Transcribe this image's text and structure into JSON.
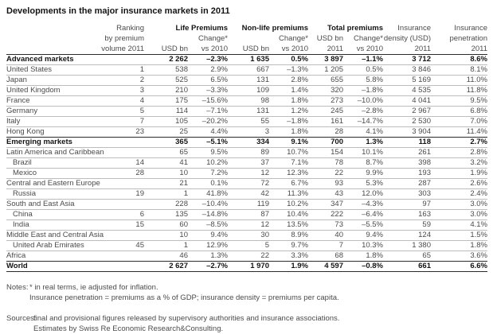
{
  "title": "Developments in the major insurance markets in 2011",
  "colors": {
    "background": "#ffffff",
    "text": "#4b4b4d",
    "bold_text": "#141414",
    "thick_rule": "#2b2b2b",
    "row_separator": "#bdbdbd"
  },
  "table": {
    "header": {
      "ranking": {
        "l1": "Ranking",
        "l2": "by premium",
        "l3": "volume 2011"
      },
      "life": {
        "group": "Life Premiums",
        "usd_l3": "USD bn",
        "chg_l2": "Change*",
        "chg_l3": "vs 2010"
      },
      "nonlife": {
        "group": "Non-life premiums",
        "usd_l3": "USD bn",
        "chg_l2": "Change*",
        "chg_l3": "vs 2010"
      },
      "total": {
        "group": "Total premiums",
        "usd_l2": "USD bn",
        "usd_l3": "2011",
        "chg_l2": "Change*",
        "chg_l3": "vs 2010"
      },
      "density": {
        "l1": "Insurance",
        "l2": "density (USD)",
        "l3": "2011"
      },
      "penetration": {
        "l1": "Insurance",
        "l2": "penetration",
        "l3": "2011"
      }
    },
    "rows": [
      {
        "label": "Advanced markets",
        "rank": "",
        "type": "aggregate",
        "values": [
          "2 262",
          "–2.3%",
          "1 635",
          "0.5%",
          "3 897",
          "–1.1%",
          "3 712",
          "8.6%"
        ]
      },
      {
        "label": "United States",
        "rank": "1",
        "type": "country",
        "values": [
          "538",
          "2.9%",
          "667",
          "–1.3%",
          "1 205",
          "0.5%",
          "3 846",
          "8.1%"
        ]
      },
      {
        "label": "Japan",
        "rank": "2",
        "type": "country",
        "values": [
          "525",
          "6.5%",
          "131",
          "2.8%",
          "655",
          "5.8%",
          "5 169",
          "11.0%"
        ]
      },
      {
        "label": "United Kingdom",
        "rank": "3",
        "type": "country",
        "values": [
          "210",
          "–3.3%",
          "109",
          "1.4%",
          "320",
          "–1.8%",
          "4 535",
          "11.8%"
        ]
      },
      {
        "label": "France",
        "rank": "4",
        "type": "country",
        "values": [
          "175",
          "–15.6%",
          "98",
          "1.8%",
          "273",
          "–10.0%",
          "4 041",
          "9.5%"
        ]
      },
      {
        "label": "Germany",
        "rank": "5",
        "type": "country",
        "values": [
          "114",
          "–7.1%",
          "131",
          "1.2%",
          "245",
          "–2.8%",
          "2 967",
          "6.8%"
        ]
      },
      {
        "label": "Italy",
        "rank": "7",
        "type": "country",
        "values": [
          "105",
          "–20.2%",
          "55",
          "–1.8%",
          "161",
          "–14.7%",
          "2 530",
          "7.0%"
        ]
      },
      {
        "label": "Hong Kong",
        "rank": "23",
        "type": "country",
        "values": [
          "25",
          "4.4%",
          "3",
          "1.8%",
          "28",
          "4.1%",
          "3 904",
          "11.4%"
        ]
      },
      {
        "label": "Emerging markets",
        "rank": "",
        "type": "aggregate",
        "values": [
          "365",
          "–5.1%",
          "334",
          "9.1%",
          "700",
          "1.3%",
          "118",
          "2.7%"
        ]
      },
      {
        "label": "Latin America and Caribbean",
        "rank": "",
        "type": "region",
        "values": [
          "65",
          "9.5%",
          "89",
          "10.7%",
          "154",
          "10.1%",
          "261",
          "2.8%"
        ]
      },
      {
        "label": "Brazil",
        "rank": "14",
        "type": "country-sub",
        "values": [
          "41",
          "10.2%",
          "37",
          "7.1%",
          "78",
          "8.7%",
          "398",
          "3.2%"
        ]
      },
      {
        "label": "Mexico",
        "rank": "28",
        "type": "country-sub",
        "values": [
          "10",
          "7.2%",
          "12",
          "12.3%",
          "22",
          "9.9%",
          "193",
          "1.9%"
        ]
      },
      {
        "label": "Central and Eastern Europe",
        "rank": "",
        "type": "region",
        "values": [
          "21",
          "0.1%",
          "72",
          "6.7%",
          "93",
          "5.3%",
          "287",
          "2.6%"
        ]
      },
      {
        "label": "Russia",
        "rank": "19",
        "type": "country-sub",
        "values": [
          "1",
          "41.8%",
          "42",
          "11.3%",
          "43",
          "12.0%",
          "303",
          "2.4%"
        ]
      },
      {
        "label": "South and East Asia",
        "rank": "",
        "type": "region",
        "values": [
          "228",
          "–10.4%",
          "119",
          "10.2%",
          "347",
          "–4.3%",
          "97",
          "3.0%"
        ]
      },
      {
        "label": "China",
        "rank": "6",
        "type": "country-sub",
        "values": [
          "135",
          "–14.8%",
          "87",
          "10.4%",
          "222",
          "–6.4%",
          "163",
          "3.0%"
        ]
      },
      {
        "label": "India",
        "rank": "15",
        "type": "country-sub",
        "values": [
          "60",
          "–8.5%",
          "12",
          "13.5%",
          "73",
          "–5.5%",
          "59",
          "4.1%"
        ]
      },
      {
        "label": "Middle East and Central Asia",
        "rank": "",
        "type": "region",
        "values": [
          "10",
          "9.4%",
          "30",
          "8.9%",
          "40",
          "9.4%",
          "124",
          "1.5%"
        ]
      },
      {
        "label": "United Arab Emirates",
        "rank": "45",
        "type": "country-sub",
        "values": [
          "1",
          "12.9%",
          "5",
          "9.7%",
          "7",
          "10.3%",
          "1 380",
          "1.8%"
        ]
      },
      {
        "label": "Africa",
        "rank": "",
        "type": "region",
        "values": [
          "46",
          "1.3%",
          "22",
          "3.3%",
          "68",
          "1.8%",
          "65",
          "3.6%"
        ]
      },
      {
        "label": "World",
        "rank": "",
        "type": "aggregate",
        "values": [
          "2 627",
          "–2.7%",
          "1 970",
          "1.9%",
          "4 597",
          "–0.8%",
          "661",
          "6.6%"
        ]
      }
    ]
  },
  "notes": {
    "notes_label": "Notes:",
    "notes_lines": [
      "* in real terms, ie adjusted for inflation.",
      "Insurance penetration = premiums as a % of GDP; insurance density = premiums per capita."
    ],
    "sources_label": "Sources:",
    "sources_lines": [
      "final and provisional figures released by supervisory authorities and insurance associations.",
      "Estimates by Swiss Re Economic Research&Consulting."
    ]
  }
}
